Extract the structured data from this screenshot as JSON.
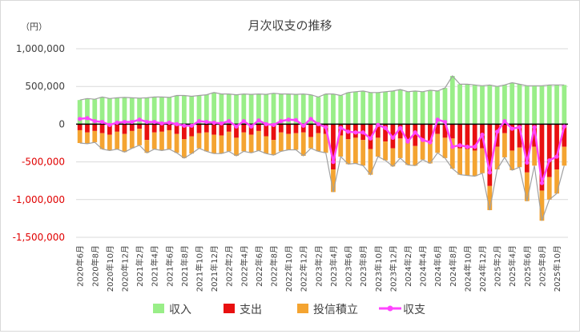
{
  "chart_data": {
    "type": "bar",
    "title": "月次収支の推移",
    "unit_label": "（円）",
    "ylim": [
      -1500000,
      1000000
    ],
    "yticks": [
      "1,000,000",
      "500,000",
      "0",
      "-500,000",
      "-1,000,000",
      "-1,500,000"
    ],
    "ytick_values": [
      1000000,
      500000,
      0,
      -500000,
      -1000000,
      -1500000
    ],
    "categories": [
      "2020年6月",
      "2020年7月",
      "2020年8月",
      "2020年9月",
      "2020年10月",
      "2020年11月",
      "2020年12月",
      "2021年1月",
      "2021年2月",
      "2021年3月",
      "2021年4月",
      "2021年5月",
      "2021年6月",
      "2021年7月",
      "2021年8月",
      "2021年9月",
      "2021年10月",
      "2021年11月",
      "2021年12月",
      "2022年1月",
      "2022年2月",
      "2022年3月",
      "2022年4月",
      "2022年5月",
      "2022年6月",
      "2022年7月",
      "2022年8月",
      "2022年9月",
      "2022年10月",
      "2022年11月",
      "2022年12月",
      "2023年1月",
      "2023年2月",
      "2023年3月",
      "2023年4月",
      "2023年5月",
      "2023年6月",
      "2023年7月",
      "2023年8月",
      "2023年9月",
      "2023年10月",
      "2023年11月",
      "2023年12月",
      "2024年1月",
      "2024年2月",
      "2024年3月",
      "2024年4月",
      "2024年5月",
      "2024年6月",
      "2024年7月",
      "2024年8月",
      "2024年9月",
      "2024年10月",
      "2024年11月",
      "2024年12月",
      "2025年1月",
      "2025年2月",
      "2025年3月",
      "2025年4月",
      "2025年5月",
      "2025年6月",
      "2025年7月",
      "2025年8月",
      "2025年9月",
      "2025年10月",
      "2025年11月"
    ],
    "label_every": 2,
    "series": [
      {
        "name": "収入",
        "kind": "bar",
        "color": "#99ee88",
        "values": [
          320000,
          340000,
          330000,
          360000,
          340000,
          350000,
          355000,
          350000,
          345000,
          350000,
          360000,
          360000,
          355000,
          380000,
          380000,
          370000,
          380000,
          390000,
          420000,
          400000,
          400000,
          390000,
          400000,
          395000,
          400000,
          395000,
          410000,
          400000,
          400000,
          395000,
          400000,
          390000,
          360000,
          400000,
          400000,
          380000,
          420000,
          430000,
          440000,
          420000,
          420000,
          430000,
          440000,
          460000,
          430000,
          440000,
          430000,
          450000,
          440000,
          480000,
          640000,
          530000,
          530000,
          520000,
          510000,
          520000,
          500000,
          520000,
          550000,
          530000,
          510000,
          510000,
          510000,
          520000,
          520000,
          520000
        ]
      },
      {
        "name": "支出",
        "kind": "bar",
        "color": "#e81010",
        "values": [
          -80000,
          -110000,
          -90000,
          -120000,
          -140000,
          -100000,
          -130000,
          -90000,
          -60000,
          -210000,
          -110000,
          -100000,
          -80000,
          -130000,
          -200000,
          -160000,
          -120000,
          -110000,
          -140000,
          -150000,
          -100000,
          -180000,
          -110000,
          -140000,
          -90000,
          -160000,
          -210000,
          -110000,
          -130000,
          -120000,
          -110000,
          -170000,
          -120000,
          -130000,
          -600000,
          -150000,
          -200000,
          -180000,
          -210000,
          -330000,
          -180000,
          -230000,
          -320000,
          -190000,
          -200000,
          -290000,
          -220000,
          -240000,
          -130000,
          -180000,
          -190000,
          -320000,
          -330000,
          -350000,
          -320000,
          -820000,
          -300000,
          -120000,
          -350000,
          -310000,
          -640000,
          -300000,
          -880000,
          -700000,
          -600000,
          -300000
        ]
      },
      {
        "name": "投信積立",
        "kind": "bar",
        "color": "#f4a431",
        "values": [
          -170000,
          -150000,
          -150000,
          -210000,
          -210000,
          -230000,
          -240000,
          -230000,
          -220000,
          -170000,
          -220000,
          -250000,
          -250000,
          -250000,
          -250000,
          -230000,
          -200000,
          -250000,
          -250000,
          -240000,
          -260000,
          -240000,
          -250000,
          -240000,
          -260000,
          -230000,
          -200000,
          -250000,
          -210000,
          -220000,
          -310000,
          -150000,
          -240000,
          -250000,
          -300000,
          -280000,
          -330000,
          -340000,
          -340000,
          -340000,
          -250000,
          -250000,
          -240000,
          -260000,
          -340000,
          -260000,
          -250000,
          -280000,
          -250000,
          -270000,
          -400000,
          -350000,
          -350000,
          -340000,
          -330000,
          -320000,
          -300000,
          -320000,
          -260000,
          -260000,
          -380000,
          -250000,
          -400000,
          -300000,
          -320000,
          -250000
        ]
      },
      {
        "name": "収支",
        "kind": "line",
        "color": "#ff44ff",
        "values": [
          70000,
          80000,
          40000,
          30000,
          -10000,
          20000,
          30000,
          30000,
          60000,
          30000,
          30000,
          10000,
          20000,
          0,
          -20000,
          -20000,
          40000,
          30000,
          20000,
          10000,
          40000,
          -30000,
          40000,
          -30000,
          50000,
          0,
          -10000,
          40000,
          60000,
          55000,
          -20000,
          70000,
          0,
          -40000,
          -500000,
          -50000,
          -100000,
          -110000,
          -110000,
          -190000,
          -10000,
          -50000,
          -180000,
          -50000,
          -230000,
          -110000,
          -210000,
          -240000,
          60000,
          30000,
          -300000,
          -280000,
          -300000,
          -300000,
          -140000,
          -640000,
          -100000,
          40000,
          -60000,
          -40000,
          -510000,
          -40000,
          -780000,
          -480000,
          -430000,
          -30000
        ]
      }
    ],
    "line_extra": [
      {
        "name": "outline",
        "color": "#a0a0a0"
      }
    ],
    "grid": true,
    "legend_position": "bottom",
    "legend": [
      {
        "name": "収入",
        "color": "#99ee88",
        "style": "box"
      },
      {
        "name": "支出",
        "color": "#e81010",
        "style": "box"
      },
      {
        "name": "投信積立",
        "color": "#f4a431",
        "style": "box"
      },
      {
        "name": "収支",
        "color": "#ff44ff",
        "style": "line"
      }
    ]
  }
}
